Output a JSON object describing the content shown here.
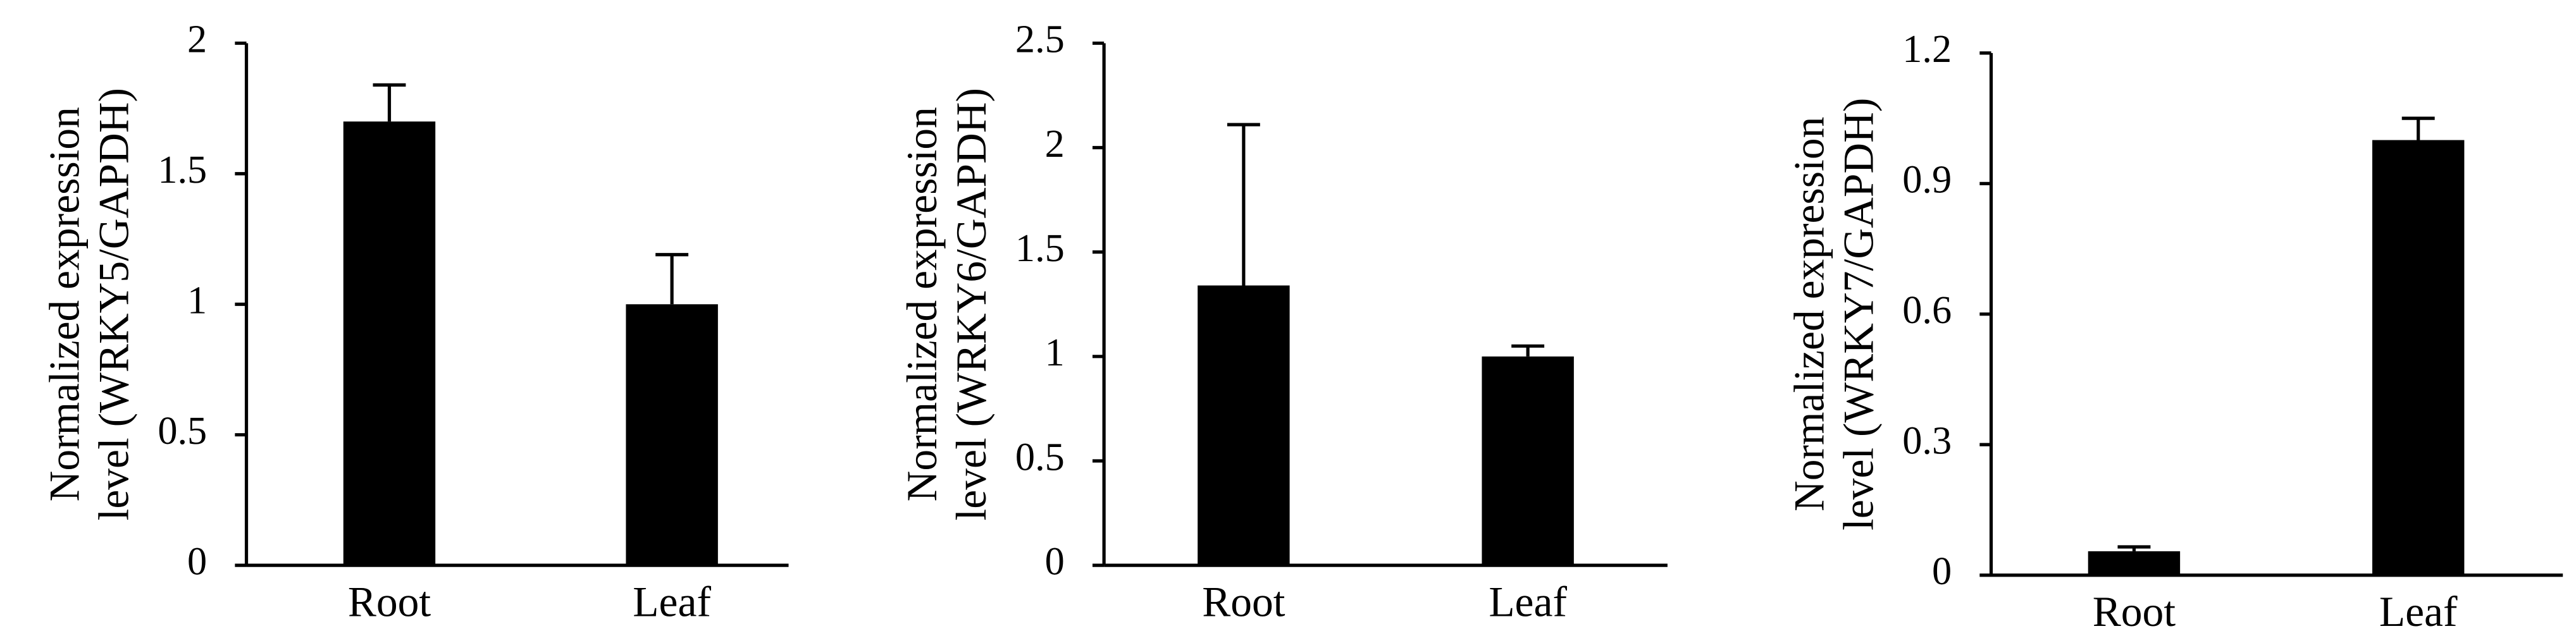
{
  "chart_data": [
    {
      "type": "bar",
      "ylabel": [
        "Normalized expression",
        "level (WRKY5/GAPDH)"
      ],
      "categories": [
        "Root",
        "Leaf"
      ],
      "values": [
        1.7,
        1.0
      ],
      "errors": [
        0.14,
        0.19
      ],
      "color": "#000000",
      "ylim": [
        0,
        2
      ],
      "yticks": [
        0,
        0.5,
        1,
        1.5,
        2
      ]
    },
    {
      "type": "bar",
      "ylabel": [
        "Normalized expression",
        "level (WRKY6/GAPDH)"
      ],
      "categories": [
        "Root",
        "Leaf"
      ],
      "values": [
        1.34,
        1.0
      ],
      "errors": [
        0.77,
        0.05
      ],
      "color": "#000000",
      "ylim": [
        0,
        2.5
      ],
      "yticks": [
        0,
        0.5,
        1,
        1.5,
        2,
        2.5
      ]
    },
    {
      "type": "bar",
      "ylabel": [
        "Normalized expression",
        "level (WRKY7/GAPDH)"
      ],
      "categories": [
        "Root",
        "Leaf"
      ],
      "values": [
        0.055,
        1.0
      ],
      "errors": [
        0.01,
        0.05
      ],
      "color": "#000000",
      "ylim": [
        0,
        1.2
      ],
      "yticks": [
        0,
        0.3,
        0.6,
        0.9,
        1.2
      ]
    }
  ]
}
